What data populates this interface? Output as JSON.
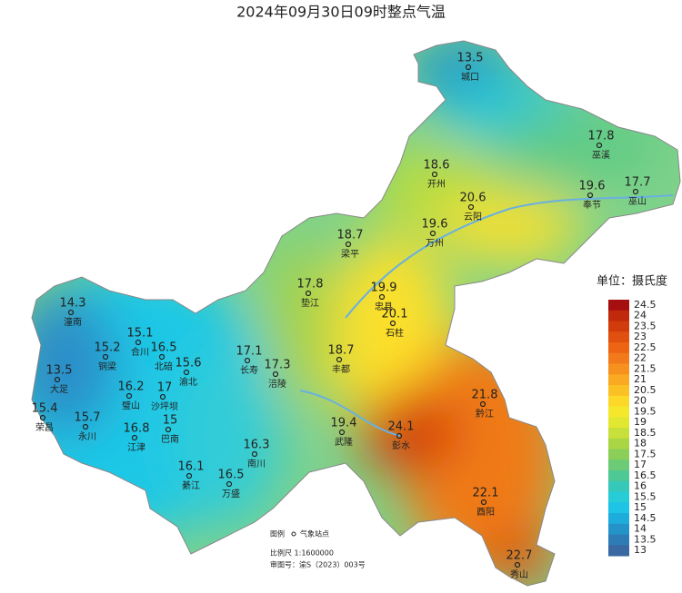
{
  "title": "2024年09月30日09时整点气温",
  "stations": [
    {
      "name": "城口",
      "value": 13.5
    },
    {
      "name": "巫溪",
      "value": 17.8
    },
    {
      "name": "开州",
      "value": 18.6
    },
    {
      "name": "云阳",
      "value": 20.6
    },
    {
      "name": "奉节",
      "value": 19.6
    },
    {
      "name": "巫山",
      "value": 17.7
    },
    {
      "name": "万州",
      "value": 19.6
    },
    {
      "name": "梁平",
      "value": 18.7
    },
    {
      "name": "垫江",
      "value": 17.8
    },
    {
      "name": "忠县",
      "value": 19.9
    },
    {
      "name": "潼南",
      "value": 14.3
    },
    {
      "name": "合川",
      "value": 15.1
    },
    {
      "name": "铜梁",
      "value": 15.2
    },
    {
      "name": "北碚",
      "value": 16.5
    },
    {
      "name": "渝北",
      "value": 15.6
    },
    {
      "name": "长寿",
      "value": 17.1
    },
    {
      "name": "涪陵",
      "value": 17.3
    },
    {
      "name": "丰都",
      "value": 18.7
    },
    {
      "name": "石柱",
      "value": 20.1
    },
    {
      "name": "大足",
      "value": 13.5
    },
    {
      "name": "璧山",
      "value": 16.2
    },
    {
      "name": "沙坪坝",
      "value": 17
    },
    {
      "name": "荣昌",
      "value": 15.4
    },
    {
      "name": "永川",
      "value": 15.7
    },
    {
      "name": "江津",
      "value": 16.8
    },
    {
      "name": "巴南",
      "value": 15
    },
    {
      "name": "武隆",
      "value": 19.4
    },
    {
      "name": "彭水",
      "value": 24.1
    },
    {
      "name": "黔江",
      "value": 21.8
    },
    {
      "name": "南川",
      "value": 16.3
    },
    {
      "name": "綦江",
      "value": 16.1
    },
    {
      "name": "万盛",
      "value": 16.5
    },
    {
      "name": "酉阳",
      "value": 22.1
    },
    {
      "name": "秀山",
      "value": 22.7
    }
  ],
  "legend": {
    "unit": "单位：摄氏度",
    "levels": [
      {
        "value": 24.5,
        "color": "#a50f0f"
      },
      {
        "value": 24,
        "color": "#c0290c"
      },
      {
        "value": 23.5,
        "color": "#d23c0c"
      },
      {
        "value": 23,
        "color": "#e0500e"
      },
      {
        "value": 22.5,
        "color": "#ec6414"
      },
      {
        "value": 22,
        "color": "#f27a1a"
      },
      {
        "value": 21.5,
        "color": "#f6911e"
      },
      {
        "value": 21,
        "color": "#f9a922"
      },
      {
        "value": 20.5,
        "color": "#fbc024"
      },
      {
        "value": 20,
        "color": "#fcd828"
      },
      {
        "value": 19.5,
        "color": "#f5e82c"
      },
      {
        "value": 19,
        "color": "#e2e832"
      },
      {
        "value": 18.5,
        "color": "#c8e03a"
      },
      {
        "value": 18,
        "color": "#aad646"
      },
      {
        "value": 17.5,
        "color": "#8ccf58"
      },
      {
        "value": 17,
        "color": "#6ccb76"
      },
      {
        "value": 16.5,
        "color": "#4ec894"
      },
      {
        "value": 16,
        "color": "#36c8b8"
      },
      {
        "value": 15.5,
        "color": "#26ccd6"
      },
      {
        "value": 15,
        "color": "#1ec4e6"
      },
      {
        "value": 14.5,
        "color": "#1eacdc"
      },
      {
        "value": 14,
        "color": "#2494c8"
      },
      {
        "value": 13.5,
        "color": "#2e7cb6"
      },
      {
        "value": 13,
        "color": "#3a68a2"
      }
    ]
  },
  "notes": {
    "legend_label": "图例",
    "station_label": "气象站点",
    "scale": "比例尺  1:1600000",
    "review": "审图号：渝S（2023）003号"
  }
}
